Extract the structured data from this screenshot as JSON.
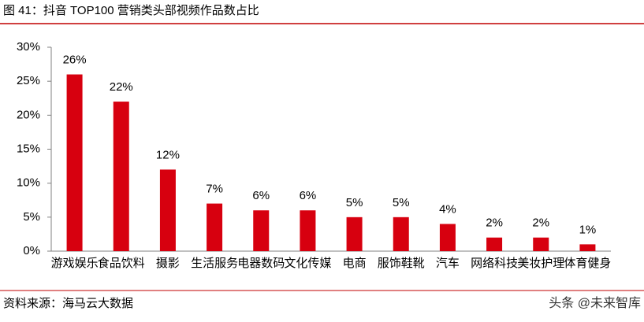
{
  "chart_data": {
    "type": "bar",
    "title": "图 41：抖音 TOP100 营销类头部视频作品数占比",
    "categories": [
      "游戏娱乐",
      "食品饮料",
      "摄影",
      "生活服务",
      "电器数码",
      "文化传媒",
      "电商",
      "服饰鞋靴",
      "汽车",
      "网络科技",
      "美妆护理",
      "体育健身"
    ],
    "values": [
      26,
      22,
      12,
      7,
      6,
      6,
      5,
      5,
      4,
      2,
      2,
      1
    ],
    "value_labels": [
      "26%",
      "22%",
      "12%",
      "7%",
      "6%",
      "6%",
      "5%",
      "5%",
      "4%",
      "2%",
      "2%",
      "1%"
    ],
    "color": "#d7000f",
    "ylim": [
      0,
      30
    ],
    "yticks": [
      {
        "value": 0,
        "label": "0%"
      },
      {
        "value": 5,
        "label": "5%"
      },
      {
        "value": 10,
        "label": "10%"
      },
      {
        "value": 15,
        "label": "15%"
      },
      {
        "value": 20,
        "label": "20%"
      },
      {
        "value": 25,
        "label": "25%"
      },
      {
        "value": 30,
        "label": "30%"
      }
    ],
    "grid": false,
    "source": "资料来源：海马云大数据",
    "watermark": "头条 @未来智库"
  }
}
